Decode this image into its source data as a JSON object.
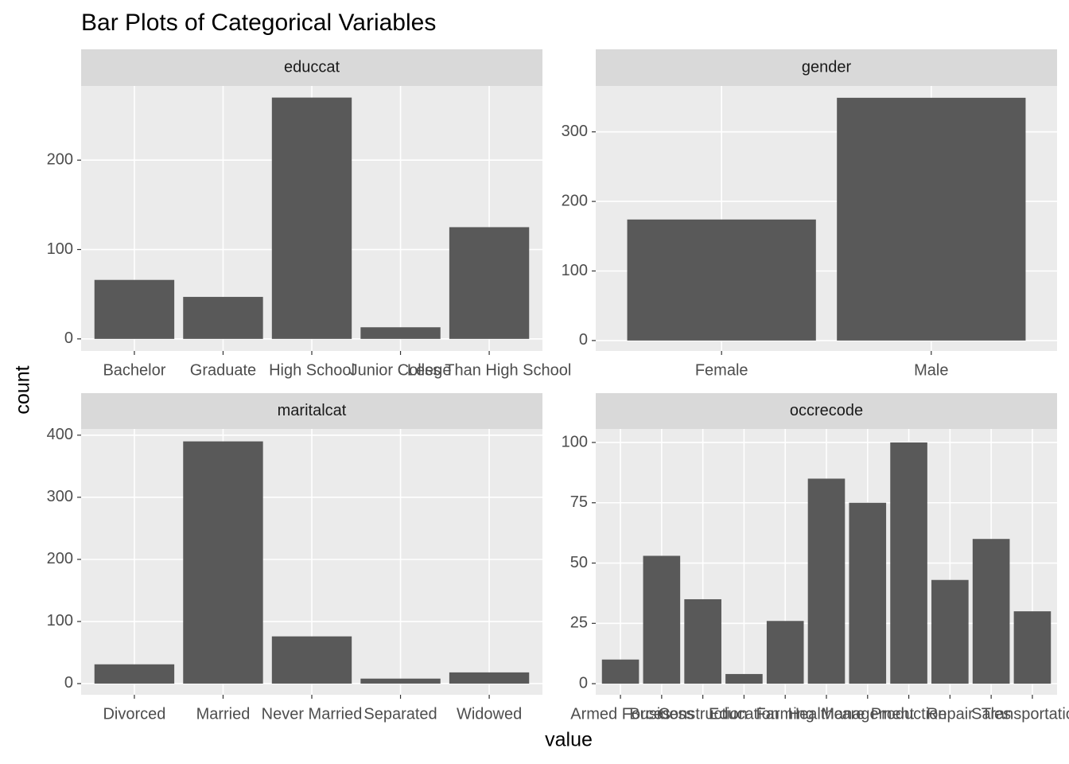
{
  "title": "Bar Plots of Categorical Variables",
  "xlabel": "value",
  "ylabel": "count",
  "chart_data": [
    {
      "type": "bar",
      "strip": "educcat",
      "categories": [
        "Bachelor",
        "Graduate",
        "High School",
        "Junior College",
        "Less Than High School"
      ],
      "values": [
        66,
        47,
        270,
        13,
        125
      ],
      "color": "#595959",
      "ylim": [
        -13.5,
        283
      ],
      "yticks": [
        0,
        100,
        200
      ],
      "grid": true
    },
    {
      "type": "bar",
      "strip": "gender",
      "categories": [
        "Female",
        "Male"
      ],
      "values": [
        174,
        349
      ],
      "color": "#595959",
      "ylim": [
        -15,
        366
      ],
      "yticks": [
        0,
        100,
        200,
        300
      ],
      "grid": true
    },
    {
      "type": "bar",
      "strip": "maritalcat",
      "categories": [
        "Divorced",
        "Married",
        "Never Married",
        "Separated",
        "Widowed"
      ],
      "values": [
        31,
        390,
        76,
        8,
        18
      ],
      "color": "#595959",
      "ylim": [
        -18,
        410
      ],
      "yticks": [
        0,
        100,
        200,
        300,
        400
      ],
      "grid": true
    },
    {
      "type": "bar",
      "strip": "occrecode",
      "categories": [
        "Armed Forces",
        "Business",
        "Construction",
        "Education",
        "Farming",
        "Healthcare",
        "Management",
        "Production",
        "Repair",
        "Sales",
        "Transportation"
      ],
      "values": [
        10,
        53,
        35,
        4,
        26,
        85,
        75,
        100,
        43,
        60,
        30
      ],
      "color": "#595959",
      "ylim": [
        -4.6,
        105.6
      ],
      "yticks": [
        0,
        25,
        50,
        75,
        100
      ],
      "grid": true
    }
  ]
}
